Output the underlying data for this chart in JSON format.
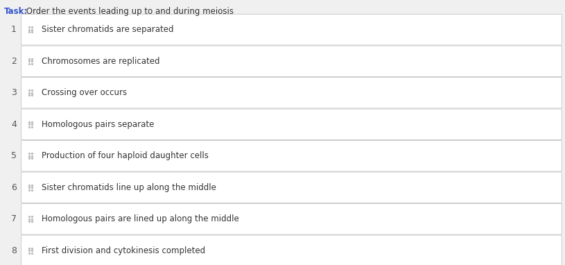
{
  "title_task": "Task:",
  "title_rest": " Order the events leading up to and during meiosis",
  "task_color": "#3355cc",
  "title_rest_color": "#333333",
  "items": [
    {
      "number": "1",
      "text": "Sister chromatids are separated"
    },
    {
      "number": "2",
      "text": "Chromosomes are replicated"
    },
    {
      "number": "3",
      "text": "Crossing over occurs"
    },
    {
      "number": "4",
      "text": "Homologous pairs separate"
    },
    {
      "number": "5",
      "text": "Production of four haploid daughter cells"
    },
    {
      "number": "6",
      "text": "Sister chromatids line up along the middle"
    },
    {
      "number": "7",
      "text": "Homologous pairs are lined up along the middle"
    },
    {
      "number": "8",
      "text": "First division and cytokinesis completed"
    }
  ],
  "bg_color": "#f0f0f0",
  "box_bg": "#ffffff",
  "box_border": "#cccccc",
  "number_color": "#555555",
  "text_color": "#333333",
  "drag_dot_color": "#bbbbbb",
  "title_fontsize": 8.5,
  "item_fontsize": 8.5,
  "number_fontsize": 9.0,
  "fig_width": 8.15,
  "fig_height": 3.82,
  "dpi": 100
}
